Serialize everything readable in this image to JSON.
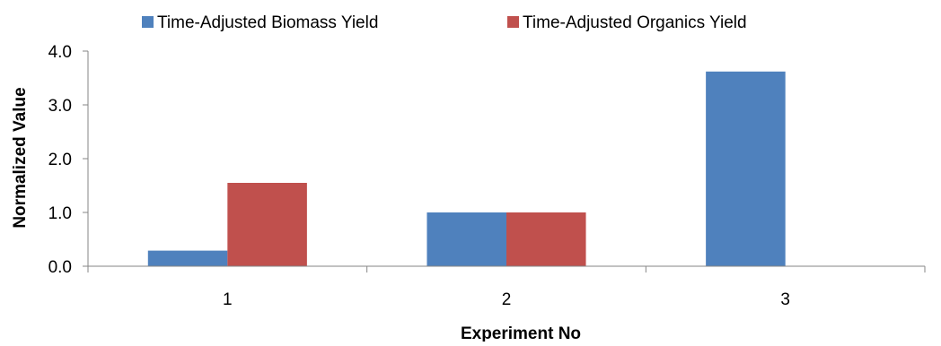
{
  "chart_data": {
    "type": "bar",
    "categories": [
      "1",
      "2",
      "3"
    ],
    "series": [
      {
        "name": "Time-Adjusted Biomass Yield",
        "values": [
          0.29,
          1.0,
          3.62
        ],
        "color": "#4f81bd"
      },
      {
        "name": "Time-Adjusted Organics Yield",
        "values": [
          1.55,
          1.0,
          0.0
        ],
        "color": "#c0504d"
      }
    ],
    "yticks": [
      "0.0",
      "1.0",
      "2.0",
      "3.0",
      "4.0"
    ],
    "ylim": [
      0,
      4
    ],
    "xlabel": "Experiment No",
    "ylabel": "Normalized Value",
    "legend_position": "top",
    "grid": false
  }
}
